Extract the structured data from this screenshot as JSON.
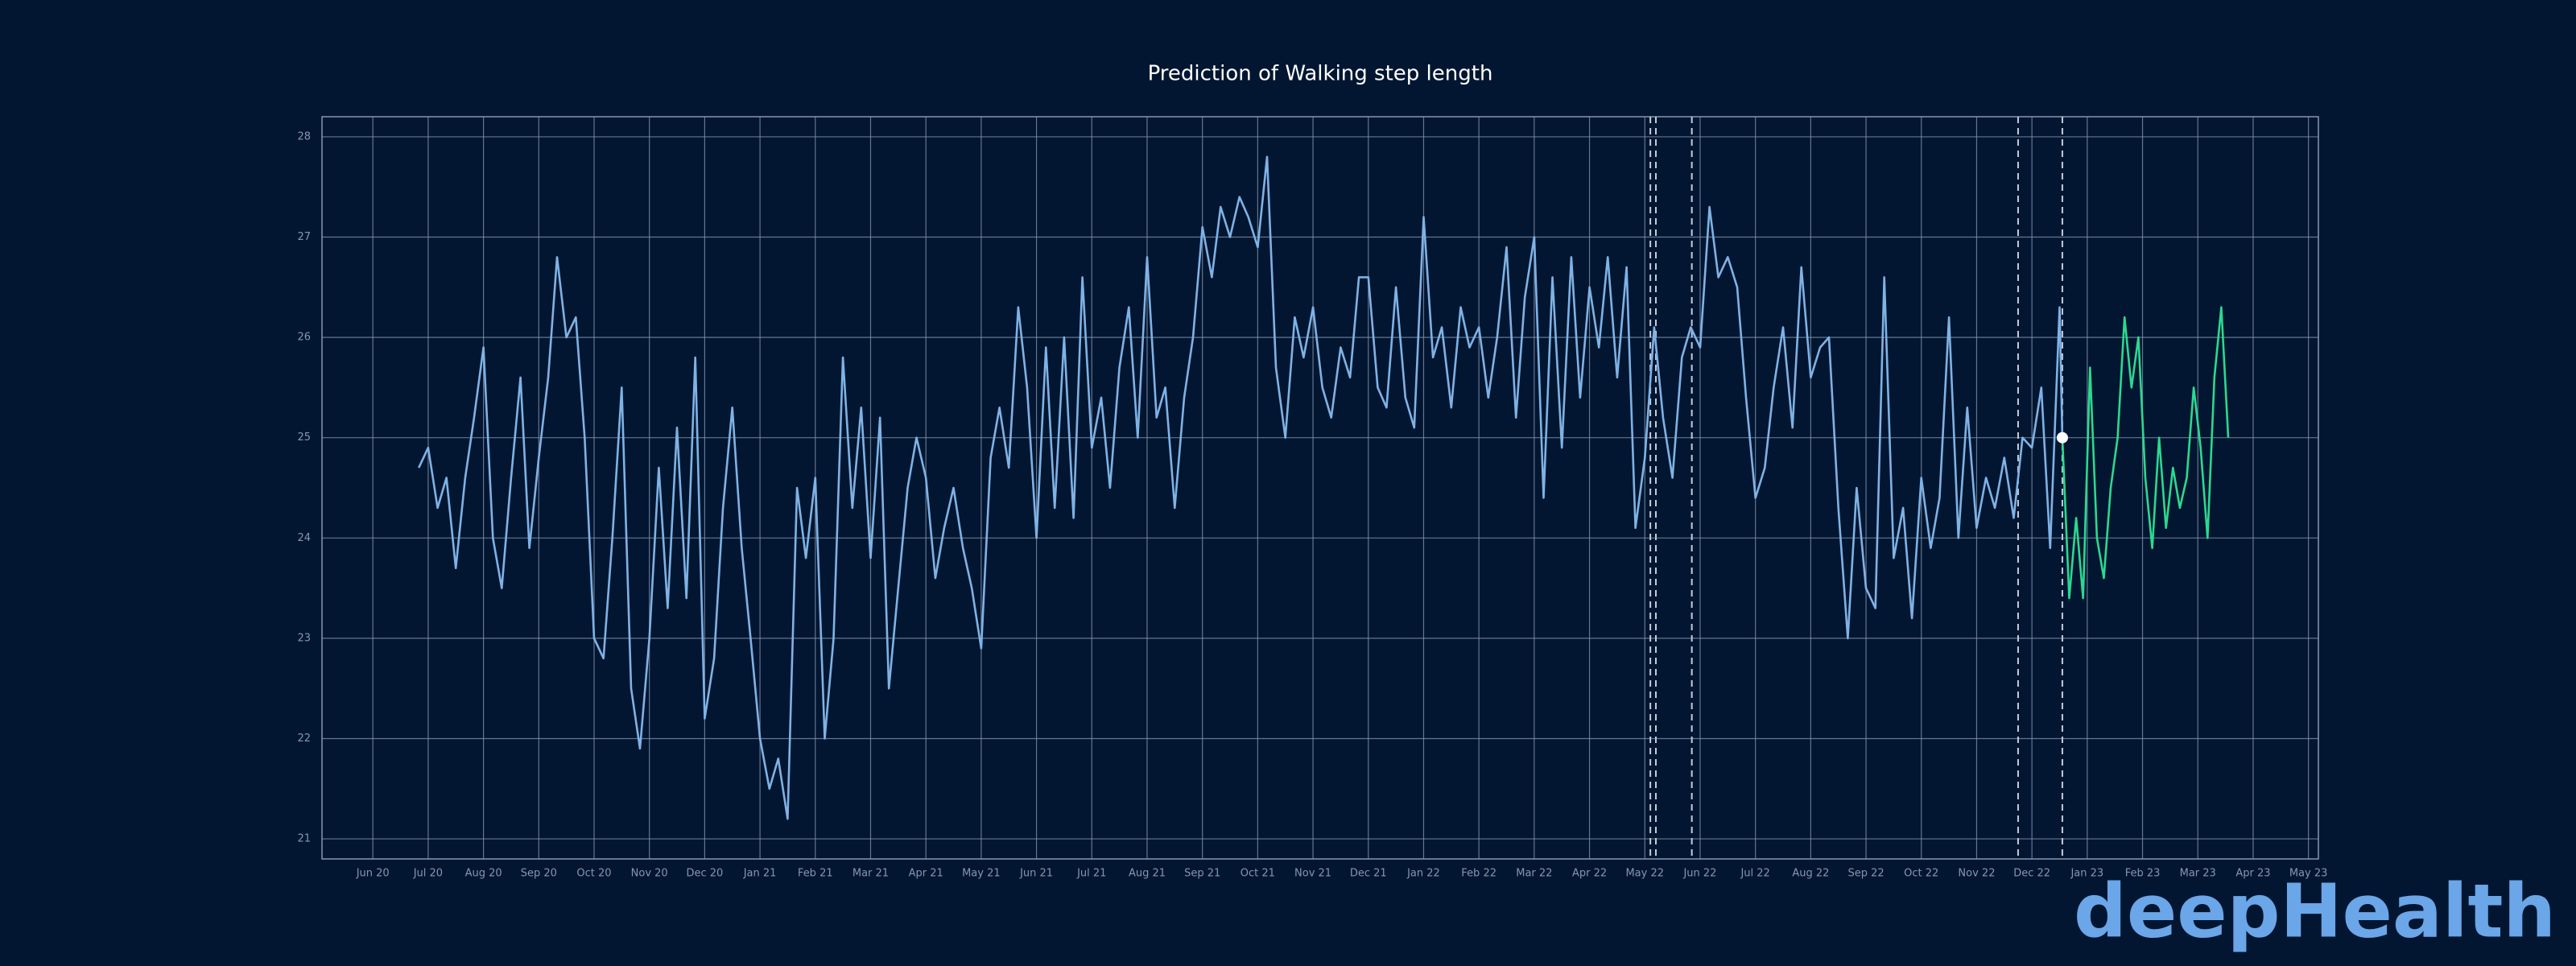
{
  "chart_data": {
    "type": "line",
    "title": "Prediction of Walking step length",
    "logo": "deepHealth",
    "xlim": [
      -0.92,
      35.18
    ],
    "ylim": [
      20.8,
      28.2
    ],
    "grid": true,
    "xticks": [
      {
        "value": 0,
        "label": "Jun 20"
      },
      {
        "value": 1,
        "label": "Jul 20"
      },
      {
        "value": 2,
        "label": "Aug 20"
      },
      {
        "value": 3,
        "label": "Sep 20"
      },
      {
        "value": 4,
        "label": "Oct 20"
      },
      {
        "value": 5,
        "label": "Nov 20"
      },
      {
        "value": 6,
        "label": "Dec 20"
      },
      {
        "value": 7,
        "label": "Jan 21"
      },
      {
        "value": 8,
        "label": "Feb 21"
      },
      {
        "value": 9,
        "label": "Mar 21"
      },
      {
        "value": 10,
        "label": "Apr 21"
      },
      {
        "value": 11,
        "label": "May 21"
      },
      {
        "value": 12,
        "label": "Jun 21"
      },
      {
        "value": 13,
        "label": "Jul 21"
      },
      {
        "value": 14,
        "label": "Aug 21"
      },
      {
        "value": 15,
        "label": "Sep 21"
      },
      {
        "value": 16,
        "label": "Oct 21"
      },
      {
        "value": 17,
        "label": "Nov 21"
      },
      {
        "value": 18,
        "label": "Dec 21"
      },
      {
        "value": 19,
        "label": "Jan 22"
      },
      {
        "value": 20,
        "label": "Feb 22"
      },
      {
        "value": 21,
        "label": "Mar 22"
      },
      {
        "value": 22,
        "label": "Apr 22"
      },
      {
        "value": 23,
        "label": "May 22"
      },
      {
        "value": 24,
        "label": "Jun 22"
      },
      {
        "value": 25,
        "label": "Jul 22"
      },
      {
        "value": 26,
        "label": "Aug 22"
      },
      {
        "value": 27,
        "label": "Sep 22"
      },
      {
        "value": 28,
        "label": "Oct 22"
      },
      {
        "value": 29,
        "label": "Nov 22"
      },
      {
        "value": 30,
        "label": "Dec 22"
      },
      {
        "value": 31,
        "label": "Jan 23"
      },
      {
        "value": 32,
        "label": "Feb 23"
      },
      {
        "value": 33,
        "label": "Mar 23"
      },
      {
        "value": 34,
        "label": "Apr 23"
      },
      {
        "value": 35,
        "label": "May 23"
      }
    ],
    "yticks": [
      21,
      22,
      23,
      24,
      25,
      26,
      27,
      28
    ],
    "markers": [
      23.1,
      23.2,
      23.85,
      29.75,
      30.55
    ],
    "highlight": {
      "x": 30.55,
      "y": 25.0,
      "color": "#ffffff"
    },
    "series": [
      {
        "color": "#7fb2e5",
        "x": [
          0.83,
          1,
          1.17,
          1.33,
          1.5,
          1.67,
          1.83,
          2,
          2.17,
          2.33,
          2.5,
          2.67,
          2.83,
          3,
          3.17,
          3.33,
          3.5,
          3.67,
          3.83,
          4,
          4.17,
          4.33,
          4.5,
          4.67,
          4.83,
          5,
          5.17,
          5.33,
          5.5,
          5.67,
          5.83,
          6,
          6.17,
          6.33,
          6.5,
          6.67,
          6.83,
          7,
          7.17,
          7.33,
          7.5,
          7.67,
          7.83,
          8,
          8.17,
          8.33,
          8.5,
          8.67,
          8.83,
          9,
          9.17,
          9.33,
          9.5,
          9.67,
          9.83,
          10,
          10.17,
          10.33,
          10.5,
          10.67,
          10.83,
          11,
          11.17,
          11.33,
          11.5,
          11.67,
          11.83,
          12,
          12.17,
          12.33,
          12.5,
          12.67,
          12.83,
          13,
          13.17,
          13.33,
          13.5,
          13.67,
          13.83,
          14,
          14.17,
          14.33,
          14.5,
          14.67,
          14.83,
          15,
          15.17,
          15.33,
          15.5,
          15.67,
          15.83,
          16,
          16.17,
          16.33,
          16.5,
          16.67,
          16.83,
          17,
          17.17,
          17.33,
          17.5,
          17.67,
          17.83,
          18,
          18.17,
          18.33,
          18.5,
          18.67,
          18.83,
          19,
          19.17,
          19.33,
          19.5,
          19.67,
          19.83,
          20,
          20.17,
          20.33,
          20.5,
          20.67,
          20.83,
          21,
          21.17,
          21.33,
          21.5,
          21.67,
          21.83,
          22,
          22.17,
          22.33,
          22.5,
          22.67,
          22.83,
          23,
          23.17,
          23.33,
          23.5,
          23.67,
          23.83,
          24,
          24.17,
          24.33,
          24.5,
          24.67,
          24.83,
          25,
          25.17,
          25.33,
          25.5,
          25.67,
          25.83,
          26,
          26.17,
          26.33,
          26.5,
          26.67,
          26.83,
          27,
          27.17,
          27.33,
          27.5,
          27.67,
          27.83,
          28,
          28.17,
          28.33,
          28.5,
          28.67,
          28.83,
          29,
          29.17,
          29.33,
          29.5,
          29.67,
          29.83,
          30,
          30.17,
          30.33,
          30.5,
          30.55
        ],
        "values": [
          24.7,
          24.9,
          24.3,
          24.6,
          23.7,
          24.6,
          25.2,
          25.9,
          24.0,
          23.5,
          24.6,
          25.6,
          23.9,
          24.8,
          25.6,
          26.8,
          26.0,
          26.2,
          25.0,
          23.0,
          22.8,
          24.0,
          25.5,
          22.5,
          21.9,
          23.0,
          24.7,
          23.3,
          25.1,
          23.4,
          25.8,
          22.2,
          22.8,
          24.3,
          25.3,
          23.9,
          23.0,
          22.0,
          21.5,
          21.8,
          21.2,
          24.5,
          23.8,
          24.6,
          22.0,
          23.0,
          25.8,
          24.3,
          25.3,
          23.8,
          25.2,
          22.5,
          23.5,
          24.5,
          25.0,
          24.6,
          23.6,
          24.1,
          24.5,
          23.9,
          23.5,
          22.9,
          24.8,
          25.3,
          24.7,
          26.3,
          25.5,
          24.0,
          25.9,
          24.3,
          26.0,
          24.2,
          26.6,
          24.9,
          25.4,
          24.5,
          25.7,
          26.3,
          25.0,
          26.8,
          25.2,
          25.5,
          24.3,
          25.4,
          26.0,
          27.1,
          26.6,
          27.3,
          27.0,
          27.4,
          27.2,
          26.9,
          27.8,
          25.7,
          25.0,
          26.2,
          25.8,
          26.3,
          25.5,
          25.2,
          25.9,
          25.6,
          26.6,
          26.6,
          25.5,
          25.3,
          26.5,
          25.4,
          25.1,
          27.2,
          25.8,
          26.1,
          25.3,
          26.3,
          25.9,
          26.1,
          25.4,
          26.0,
          26.9,
          25.2,
          26.4,
          27.0,
          24.4,
          26.6,
          24.9,
          26.8,
          25.4,
          26.5,
          25.9,
          26.8,
          25.6,
          26.7,
          24.1,
          24.8,
          26.1,
          25.2,
          24.6,
          25.8,
          26.1,
          25.9,
          27.3,
          26.6,
          26.8,
          26.5,
          25.4,
          24.4,
          24.7,
          25.5,
          26.1,
          25.1,
          26.7,
          25.6,
          25.9,
          26.0,
          24.3,
          23.0,
          24.5,
          23.5,
          23.3,
          26.6,
          23.8,
          24.3,
          23.2,
          24.6,
          23.9,
          24.4,
          26.2,
          24.0,
          25.3,
          24.1,
          24.6,
          24.3,
          24.8,
          24.2,
          25.0,
          24.9,
          25.5,
          23.9,
          26.3,
          25.0
        ]
      },
      {
        "color": "#2bd98f",
        "x": [
          30.55,
          30.675,
          30.8,
          30.925,
          31.05,
          31.175,
          31.3,
          31.425,
          31.55,
          31.675,
          31.8,
          31.925,
          32.05,
          32.175,
          32.3,
          32.425,
          32.55,
          32.675,
          32.8,
          32.925,
          33.05,
          33.175,
          33.3,
          33.425,
          33.55
        ],
        "values": [
          25.0,
          23.4,
          24.2,
          23.4,
          25.7,
          24.0,
          23.6,
          24.5,
          25.0,
          26.2,
          25.5,
          26.0,
          24.6,
          23.9,
          25.0,
          24.1,
          24.7,
          24.3,
          24.6,
          25.5,
          24.9,
          24.0,
          25.6,
          26.3,
          25.0
        ]
      }
    ]
  }
}
